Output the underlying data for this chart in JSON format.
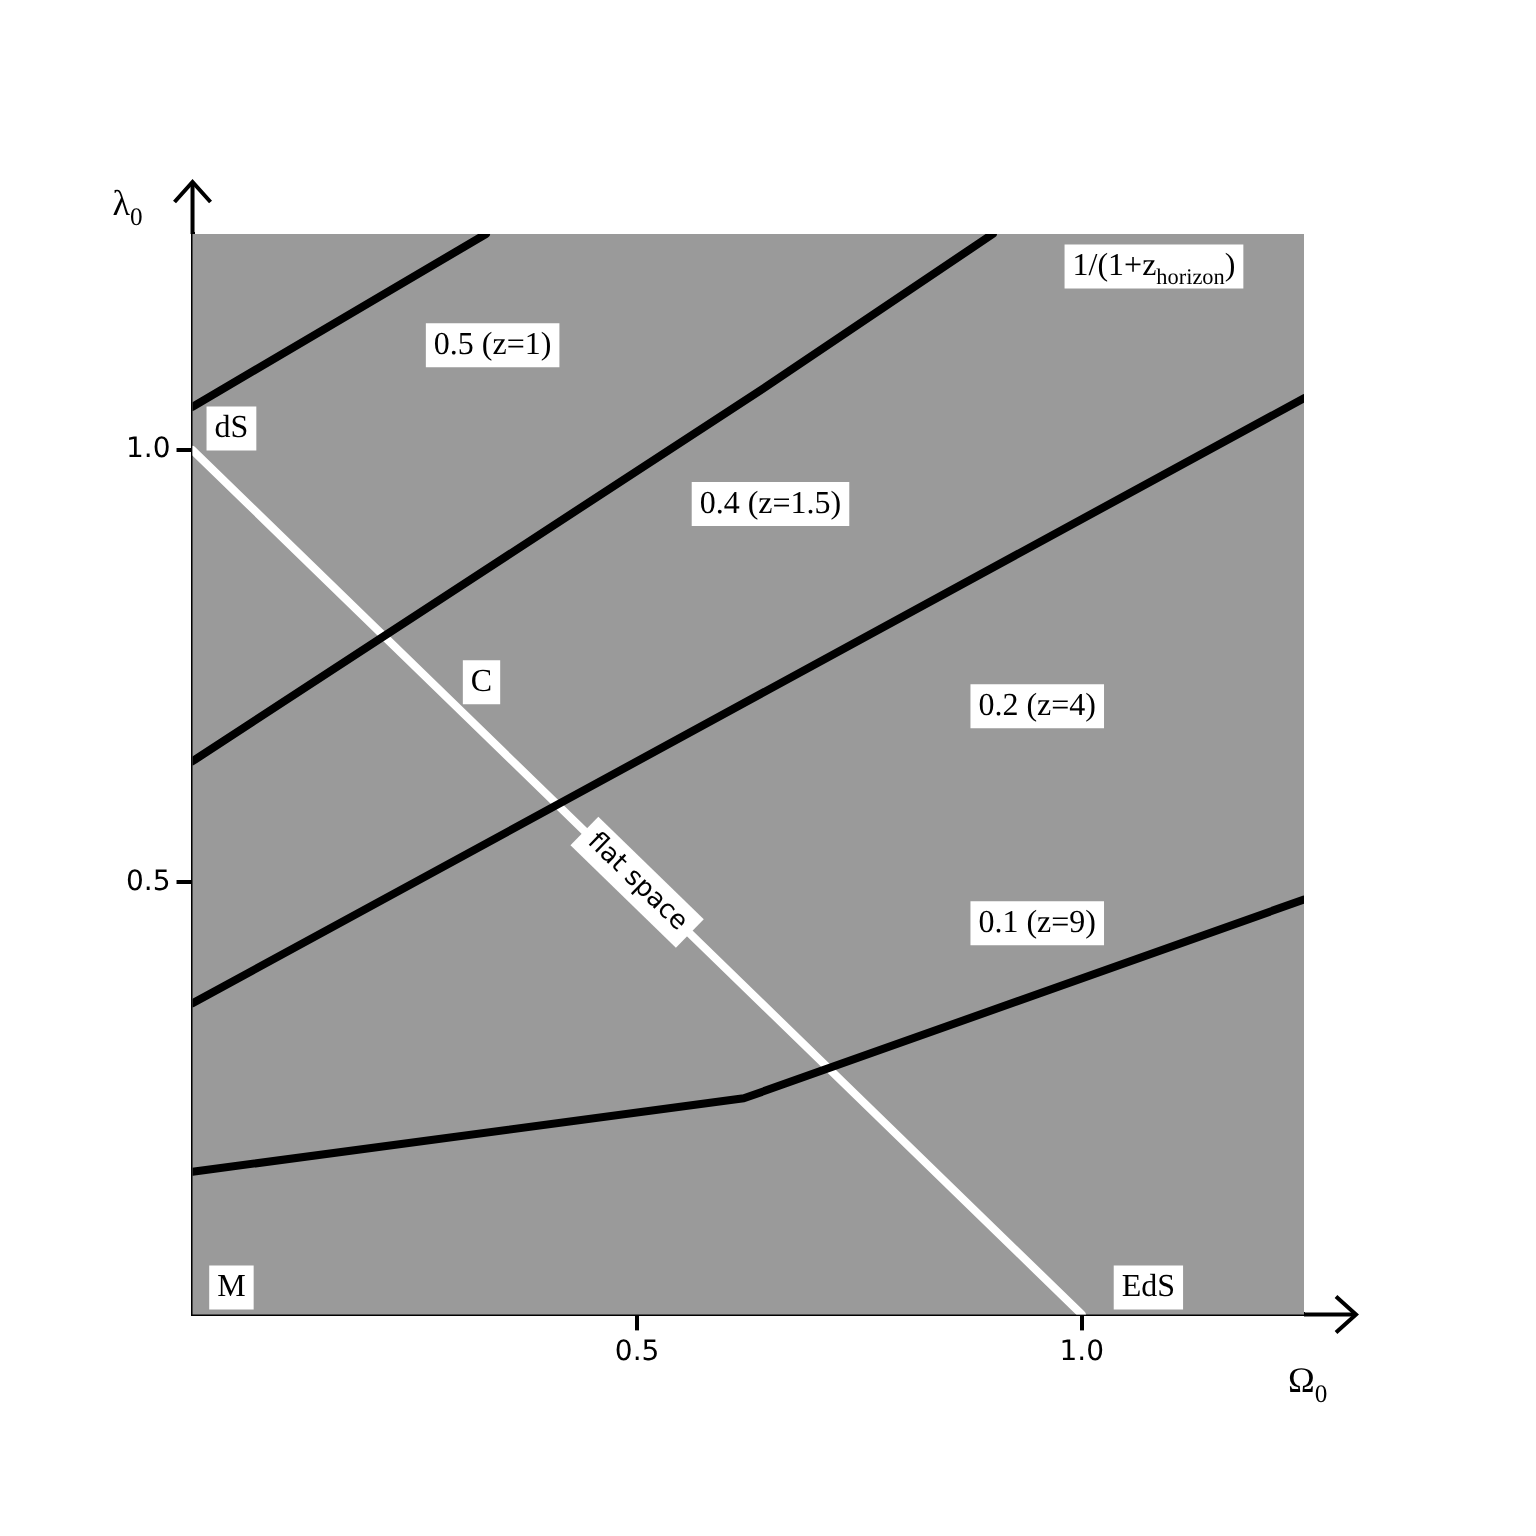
{
  "chart_data": {
    "type": "line",
    "xlabel": "Ω$_{0}$",
    "ylabel": "λ$_{0}$",
    "xlim": [
      0,
      1.25
    ],
    "ylim": [
      0,
      1.25
    ],
    "xticks": [
      0.5,
      {
        "value": 1,
        "label": "1.0"
      }
    ],
    "yticks": [
      0.5,
      {
        "value": 1,
        "label": "1.0"
      }
    ],
    "legend": false,
    "marker": "none",
    "line_style": "solid",
    "series": [
      {
        "color": "#000000",
        "x": [
          0,
          0.33
        ],
        "values": [
          1.05,
          1.25
        ]
      },
      {
        "color": "#000000",
        "x": [
          0,
          0.64,
          0.9
        ],
        "values": [
          0.64,
          1.07,
          1.25
        ]
      },
      {
        "color": "#000000",
        "x": [
          0,
          1.25
        ],
        "values": [
          0.36,
          1.06
        ]
      },
      {
        "color": "#000000",
        "x": [
          0,
          0.62,
          1.25
        ],
        "values": [
          0.165,
          0.25,
          0.48
        ]
      },
      {
        "name": "flat space",
        "color": "#ffffff",
        "x": [
          0,
          1
        ],
        "values": [
          1,
          0
        ]
      }
    ],
    "annotations": [
      "dS",
      "C",
      "M",
      "EdS",
      "0.5 (z=1)",
      "0.4 (z=1.5)",
      "0.2 (z=4)",
      "0.1 (z=9)",
      "1/(1+z$_{horizon}$)"
    ]
  }
}
